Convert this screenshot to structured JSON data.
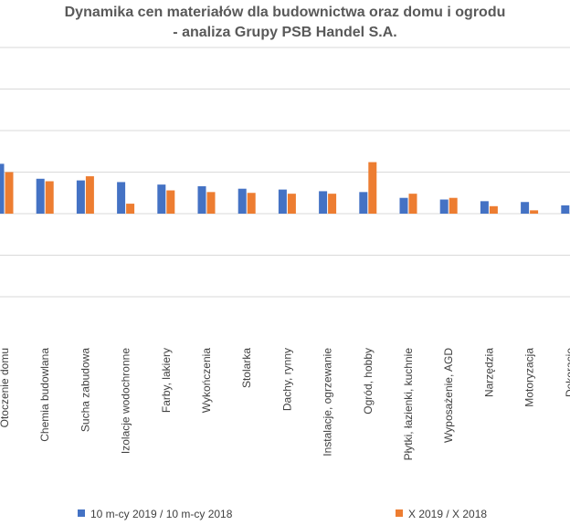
{
  "title_line1": "Dynamika cen materiałów dla budownictwa oraz domu i ogrodu",
  "title_line2": "- analiza Grupy PSB Handel S.A.",
  "chart_data": {
    "type": "bar",
    "categories": [
      "Otoczenie domu",
      "Chemia budowlana",
      "Sucha zabudowa",
      "Izolacje wodochronne",
      "Farby, lakiery",
      "Wykończenia",
      "Stolarka",
      "Dachy, rynny",
      "Instalacje, ogrzewanie",
      "Ogród, hobby",
      "Płytki, łazienki, kuchnie",
      "Wyposażenie, AGD",
      "Narzędzia",
      "Motoryzacja",
      "Dekoracje"
    ],
    "series": [
      {
        "name": "10 m-cy 2019 / 10 m-cy 2018",
        "color": "#4472C4",
        "values": [
          6.0,
          4.2,
          4.0,
          3.8,
          3.5,
          3.3,
          3.0,
          2.9,
          2.7,
          2.6,
          1.9,
          1.7,
          1.5,
          1.4,
          1.0
        ]
      },
      {
        "name": "X 2019 / X 2018",
        "color": "#ED7D31",
        "values": [
          5.0,
          3.9,
          4.5,
          1.2,
          2.8,
          2.6,
          2.5,
          2.4,
          2.4,
          6.2,
          2.4,
          1.9,
          0.9,
          0.4,
          null
        ]
      }
    ],
    "ylim": [
      -12,
      20
    ],
    "grid": true,
    "legend": "bottom"
  }
}
